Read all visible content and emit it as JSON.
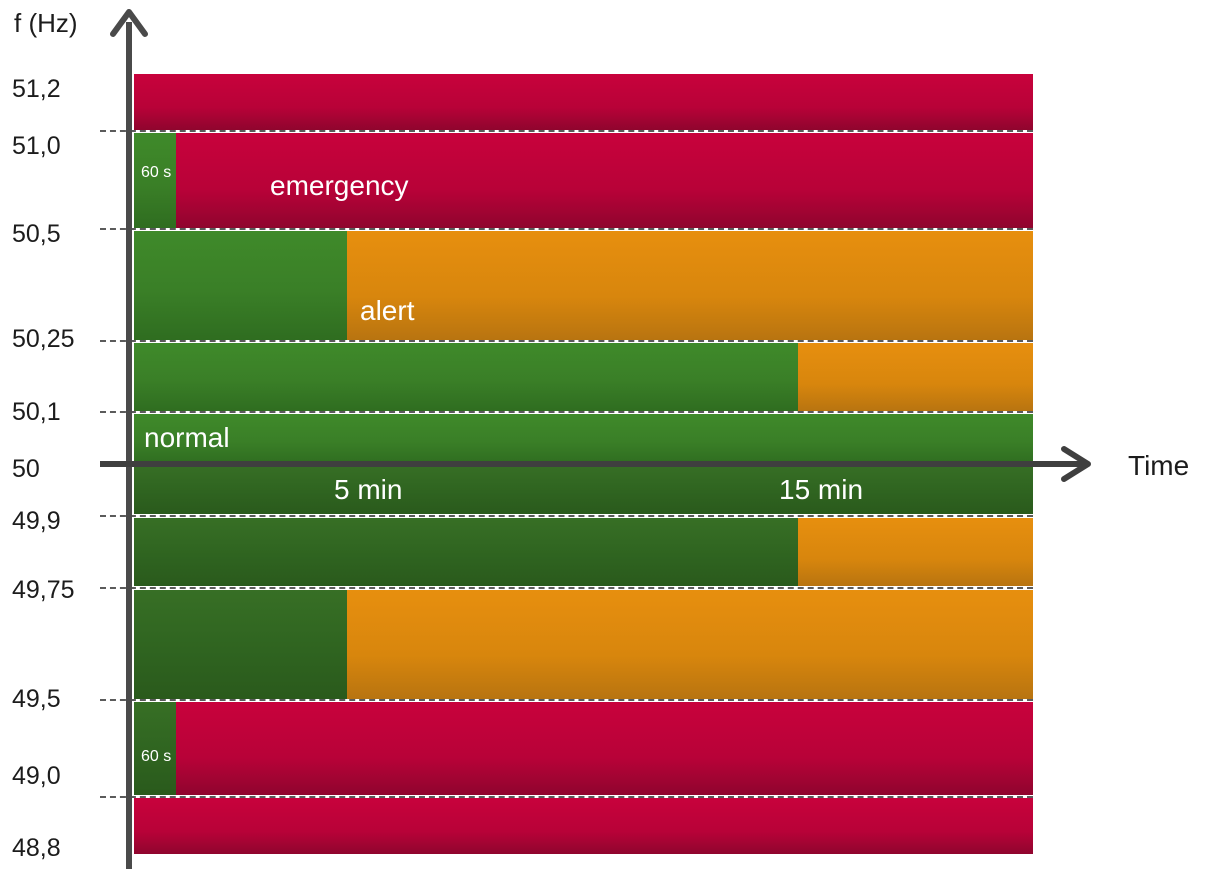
{
  "y_axis": {
    "label": "f (Hz)",
    "ticks": [
      "51,2",
      "51,0",
      "50,5",
      "50,25",
      "50,1",
      "50",
      "49,9",
      "49,75",
      "49,5",
      "49,0",
      "48,8"
    ]
  },
  "x_axis": {
    "label": "Time",
    "ticks": [
      "5 min",
      "15 min"
    ]
  },
  "zones": {
    "normal": "normal",
    "alert": "alert",
    "emergency": "emergency",
    "upper_short": "60 s",
    "lower_short": "60 s",
    "ghost": "60 s"
  },
  "colors": {
    "normal": "#3a7f27",
    "normal_dark": "#2f6420",
    "alert": "#d8860d",
    "emergency": "#b80238",
    "axis": "#4a4a4a"
  }
}
